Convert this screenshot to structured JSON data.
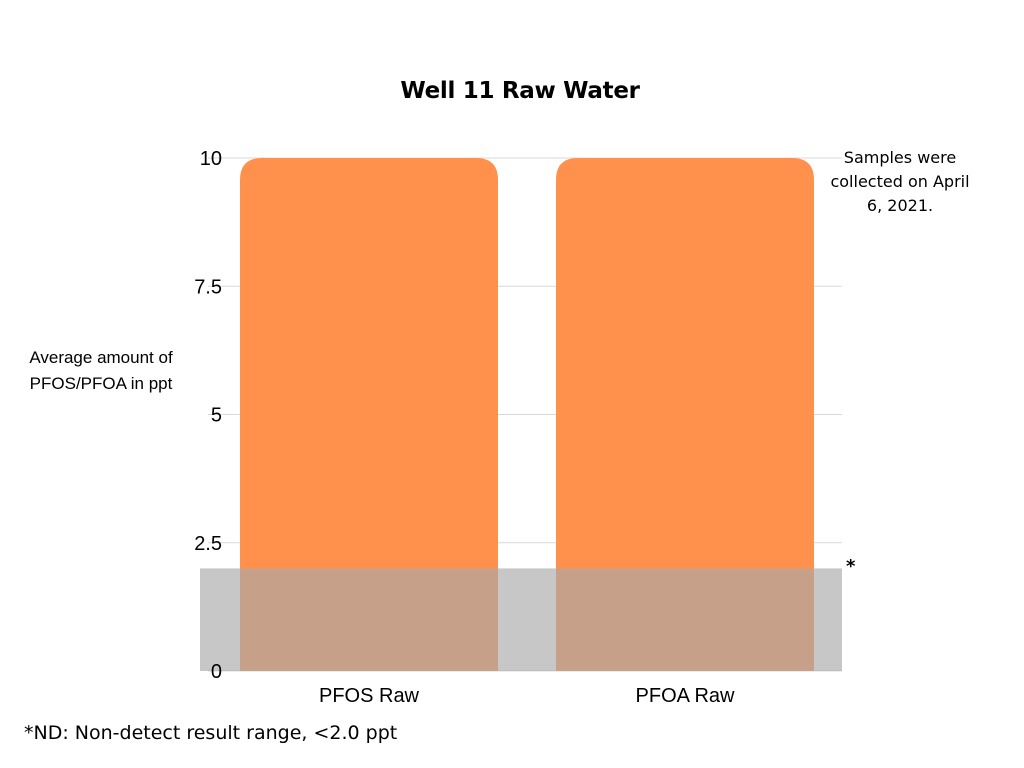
{
  "chart_data": {
    "type": "bar",
    "title": "Well 11 Raw Water",
    "ylabel": "Average amount of PFOS/PFOA in ppt",
    "xlabel": "",
    "categories": [
      "PFOS Raw",
      "PFOA Raw"
    ],
    "values": [
      10,
      10
    ],
    "ylim": [
      0,
      10
    ],
    "yticks": [
      0,
      2.5,
      5,
      7.5,
      10
    ],
    "ytick_labels": [
      "0",
      "2.5",
      "5",
      "7.5",
      "10"
    ],
    "grid": true,
    "non_detect_band": [
      0,
      2.0
    ],
    "annotations": {
      "note": "Samples were collected on April 6, 2021.",
      "band_marker": "*",
      "footnote": "*ND: Non-detect result range, <2.0 ppt"
    },
    "colors": {
      "bar": "#FF914D",
      "band": "#A9A9A9",
      "grid": "#D9D9D9"
    }
  }
}
